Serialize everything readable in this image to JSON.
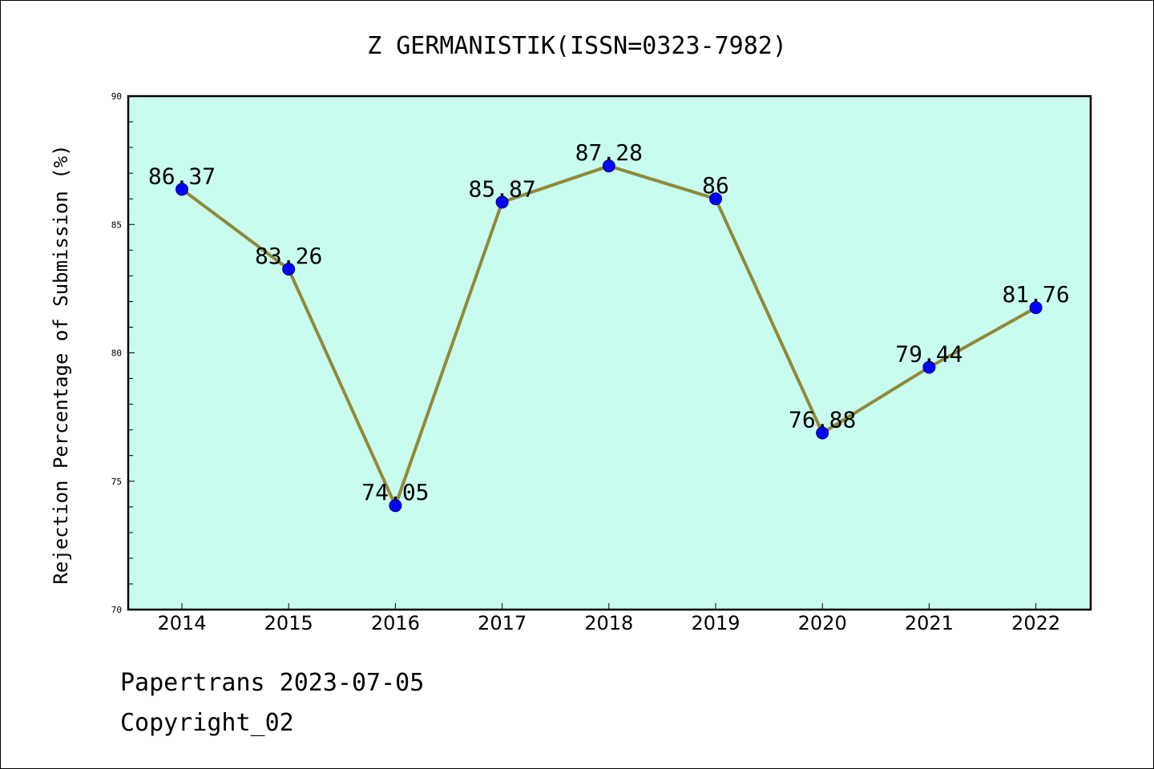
{
  "chart_data": {
    "type": "line",
    "title": "Z GERMANISTIK(ISSN=0323-7982)",
    "xlabel": "",
    "ylabel": "Rejection Percentage of Submission (%)",
    "categories": [
      "2014",
      "2015",
      "2016",
      "2017",
      "2018",
      "2019",
      "2020",
      "2021",
      "2022"
    ],
    "series": [
      {
        "values": [
          86.37,
          83.26,
          74.05,
          85.87,
          87.28,
          86,
          76.88,
          79.44,
          81.76
        ],
        "data_labels": [
          "86.37",
          "83.26",
          "74.05",
          "85.87",
          "87.28",
          "86",
          "76.88",
          "79.44",
          "81.76"
        ]
      }
    ],
    "ylim": [
      70,
      90
    ],
    "yticks": [
      "70",
      "75",
      "80",
      "85",
      "90"
    ],
    "grid": false,
    "legend": "none",
    "colors": {
      "plot_background": "#c8fcee",
      "line": "#8f8a3a",
      "marker": "#0000ff"
    }
  },
  "footer": {
    "line1": "Papertrans 2023-07-05",
    "line2": "Copyright_02"
  }
}
